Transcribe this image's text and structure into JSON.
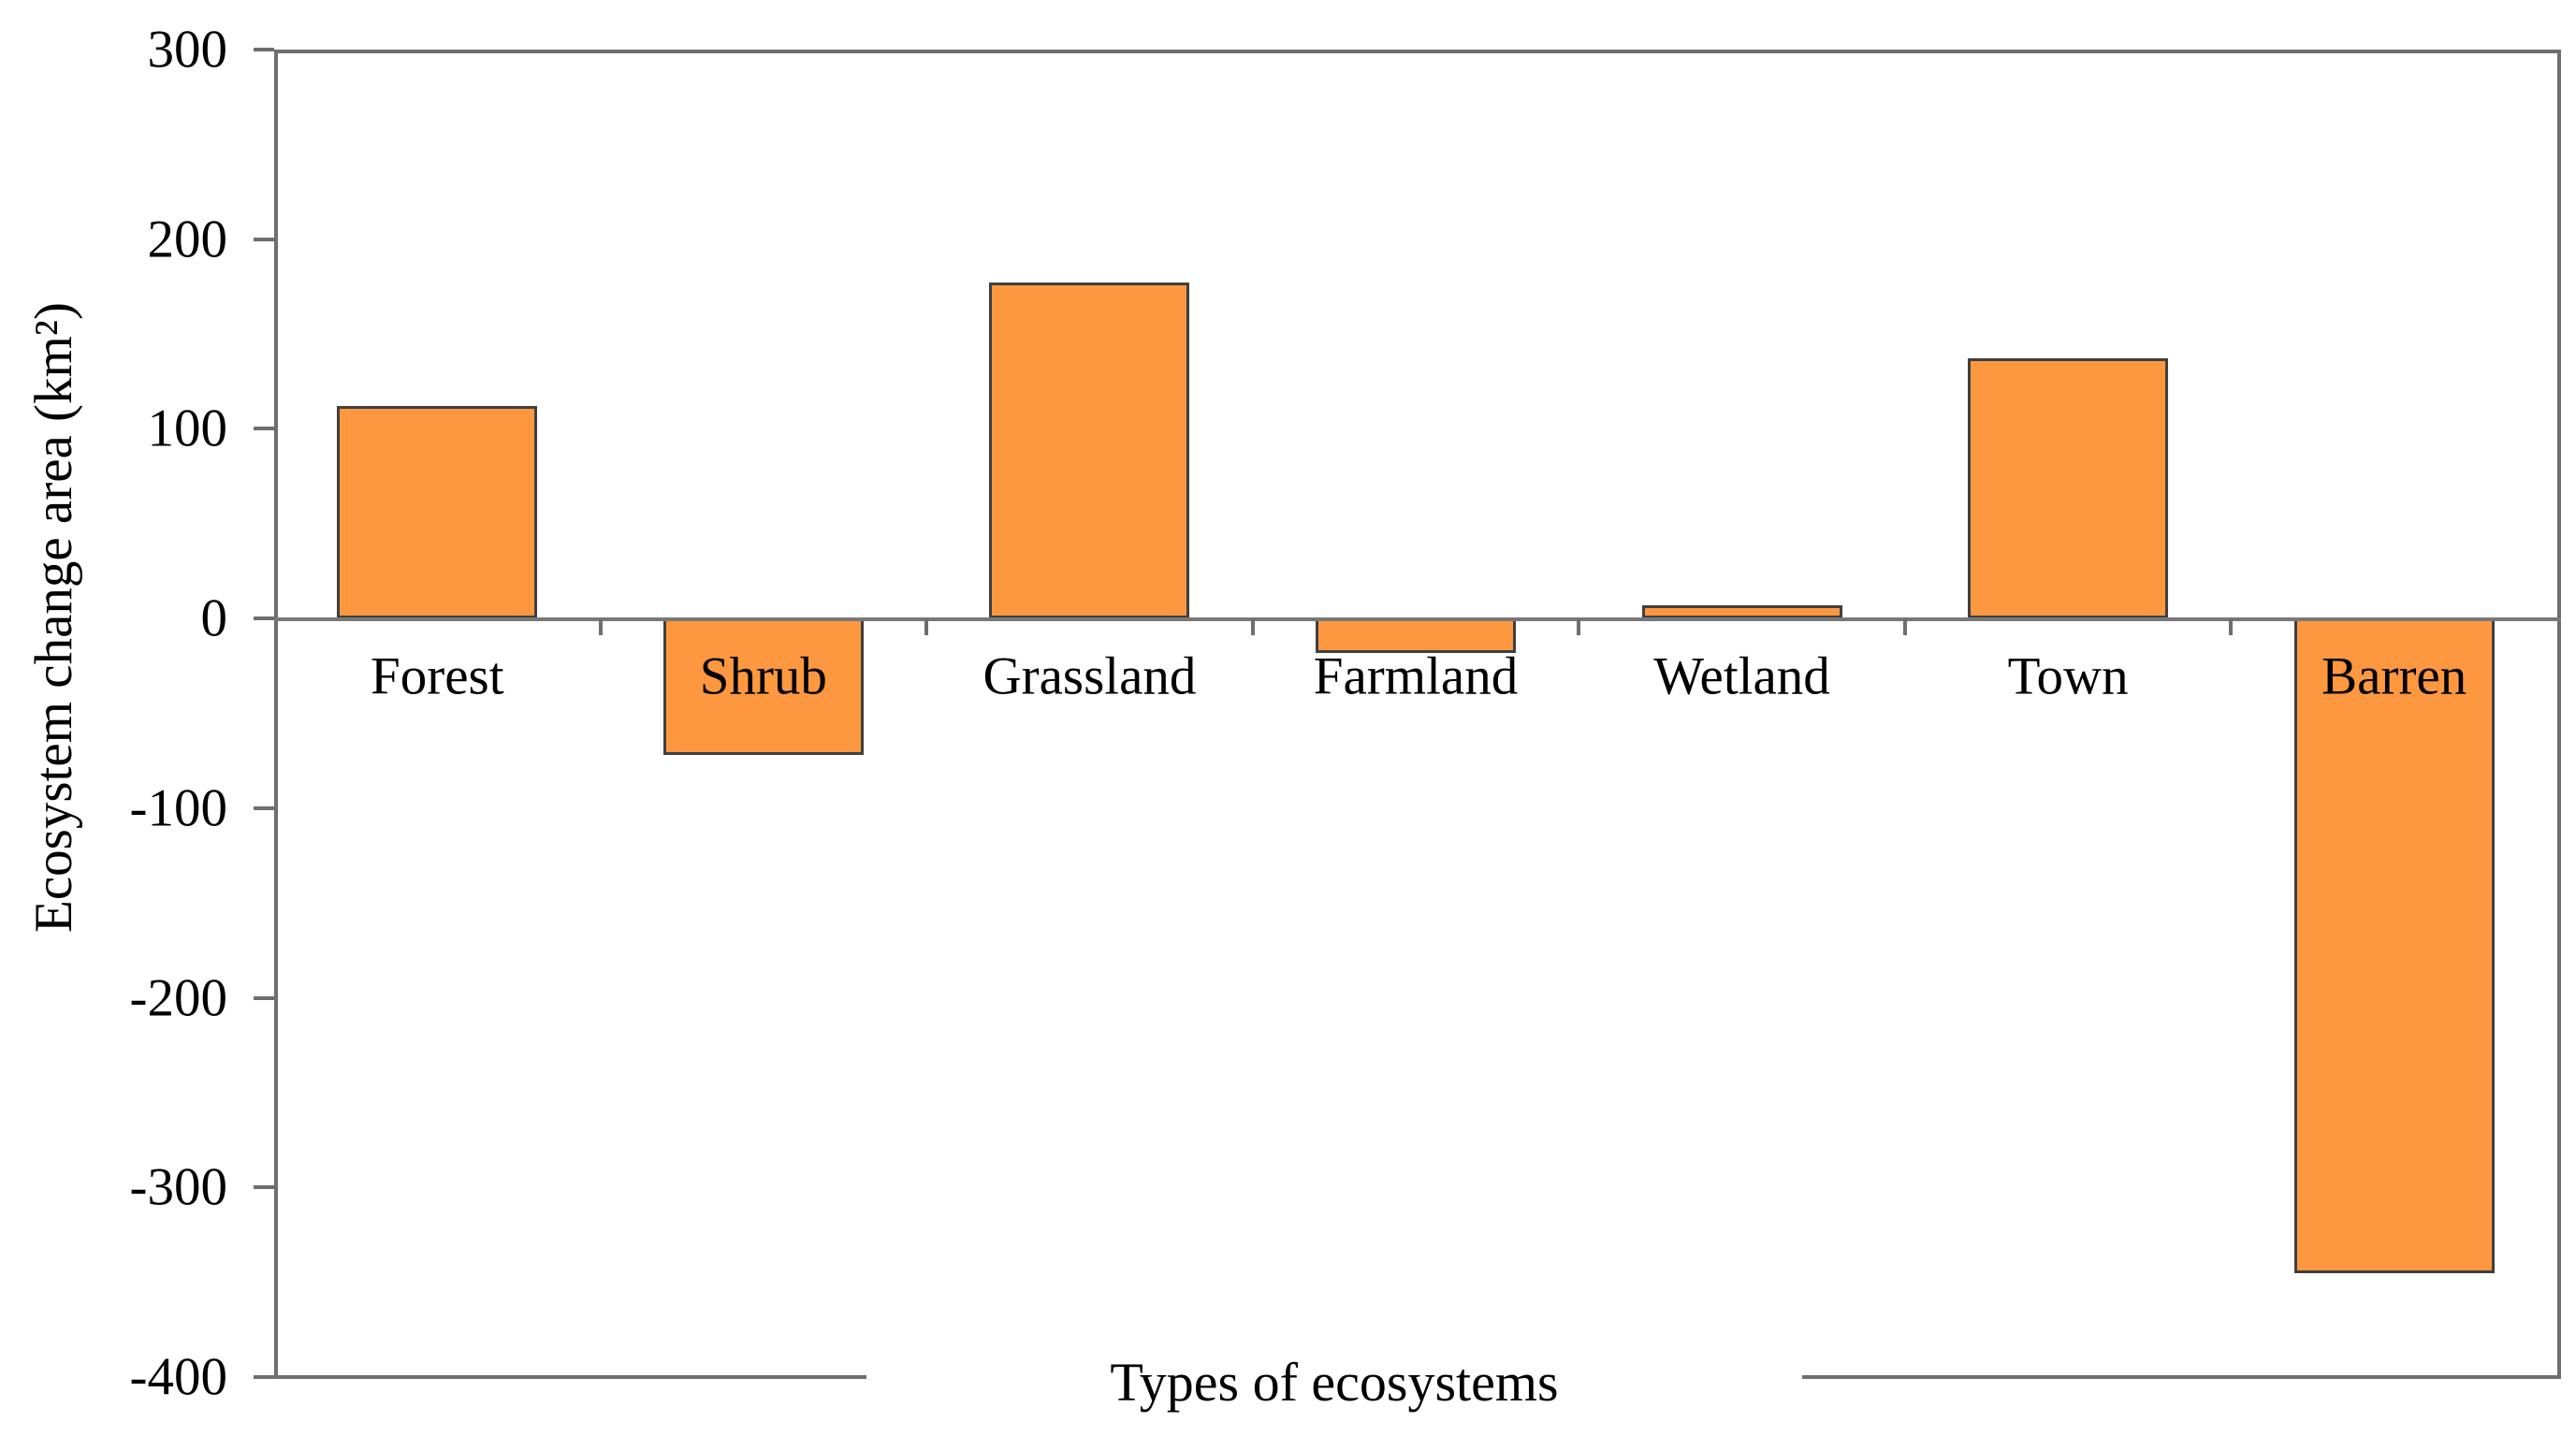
{
  "chart_data": {
    "type": "bar",
    "title": "",
    "categories": [
      "Forest",
      "Shrub",
      "Grassland",
      "Farmland",
      "Wetland",
      "Town",
      "Barren"
    ],
    "values": [
      112,
      -72,
      177,
      -18,
      7,
      137,
      -345
    ],
    "series": [
      {
        "name": "Ecosystem change area",
        "values": [
          112,
          -72,
          177,
          -18,
          7,
          137,
          -345
        ]
      }
    ],
    "xlabel": "Types of ecosystems",
    "ylabel": "Ecosystem change area (km²)",
    "ylim": [
      -400,
      300
    ],
    "y_ticks": [
      300,
      200,
      100,
      0,
      -100,
      -200,
      -300,
      -400
    ],
    "grid": false,
    "legend": false,
    "colors": {
      "bar_fill": "#FD9840",
      "bar_border": "#3F3F3F",
      "axis_line": "#6E6E6E",
      "text": "#000000",
      "background": "#FFFFFF"
    }
  }
}
